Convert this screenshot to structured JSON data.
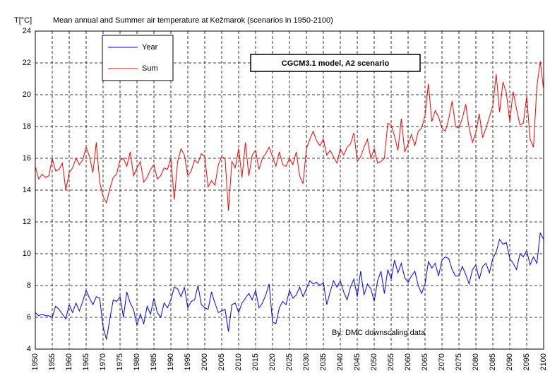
{
  "chart_data": {
    "type": "line",
    "title": "Mean annual and Summer air temperature at Kežmarok (scenarios in 1950-2100)",
    "ylabel": "T[°C]",
    "annotation": "CGCM3.1 model, A2 scenario",
    "source": "By: DMC downscaling data",
    "legend": "upper left",
    "grid": true,
    "xlim": [
      1950,
      2100
    ],
    "ylim": [
      4,
      24
    ],
    "xticks": [
      1950,
      1955,
      1960,
      1965,
      1970,
      1975,
      1980,
      1985,
      1990,
      1995,
      2000,
      2005,
      2010,
      2015,
      2020,
      2025,
      2030,
      2035,
      2040,
      2045,
      2050,
      2055,
      2060,
      2065,
      2070,
      2075,
      2080,
      2085,
      2090,
      2095,
      2100
    ],
    "yticks": [
      4,
      6,
      8,
      10,
      12,
      14,
      16,
      18,
      20,
      22,
      24
    ],
    "x": [
      1950,
      1951,
      1952,
      1953,
      1954,
      1955,
      1956,
      1957,
      1958,
      1959,
      1960,
      1961,
      1962,
      1963,
      1964,
      1965,
      1966,
      1967,
      1968,
      1969,
      1970,
      1971,
      1972,
      1973,
      1974,
      1975,
      1976,
      1977,
      1978,
      1979,
      1980,
      1981,
      1982,
      1983,
      1984,
      1985,
      1986,
      1987,
      1988,
      1989,
      1990,
      1991,
      1992,
      1993,
      1994,
      1995,
      1996,
      1997,
      1998,
      1999,
      2000,
      2001,
      2002,
      2003,
      2004,
      2005,
      2006,
      2007,
      2008,
      2009,
      2010,
      2011,
      2012,
      2013,
      2014,
      2015,
      2016,
      2017,
      2018,
      2019,
      2020,
      2021,
      2022,
      2023,
      2024,
      2025,
      2026,
      2027,
      2028,
      2029,
      2030,
      2031,
      2032,
      2033,
      2034,
      2035,
      2036,
      2037,
      2038,
      2039,
      2040,
      2041,
      2042,
      2043,
      2044,
      2045,
      2046,
      2047,
      2048,
      2049,
      2050,
      2051,
      2052,
      2053,
      2054,
      2055,
      2056,
      2057,
      2058,
      2059,
      2060,
      2061,
      2062,
      2063,
      2064,
      2065,
      2066,
      2067,
      2068,
      2069,
      2070,
      2071,
      2072,
      2073,
      2074,
      2075,
      2076,
      2077,
      2078,
      2079,
      2080,
      2081,
      2082,
      2083,
      2084,
      2085,
      2086,
      2087,
      2088,
      2089,
      2090,
      2091,
      2092,
      2093,
      2094,
      2095,
      2096,
      2097,
      2098,
      2099,
      2100
    ],
    "series": [
      {
        "name": "Year",
        "color": "#0000ff",
        "values": [
          6.3,
          6.1,
          6.2,
          6.1,
          6.1,
          6.0,
          6.7,
          6.5,
          6.2,
          5.9,
          6.8,
          6.3,
          6.9,
          6.4,
          7.0,
          7.7,
          7.2,
          6.8,
          7.3,
          7.2,
          5.4,
          4.6,
          5.9,
          7.1,
          7.0,
          7.3,
          6.0,
          7.6,
          6.9,
          6.5,
          5.5,
          6.2,
          5.6,
          6.7,
          6.2,
          7.2,
          6.3,
          6.0,
          6.9,
          6.6,
          7.1,
          7.9,
          7.8,
          7.3,
          7.9,
          6.6,
          7.0,
          7.1,
          8.0,
          6.8,
          6.6,
          6.5,
          7.6,
          6.9,
          6.3,
          6.4,
          6.5,
          5.1,
          6.8,
          6.9,
          6.3,
          6.9,
          7.2,
          7.5,
          7.1,
          7.7,
          6.6,
          6.9,
          7.4,
          8.1,
          5.7,
          5.6,
          6.6,
          7.0,
          6.8,
          7.7,
          7.2,
          7.4,
          7.9,
          7.3,
          7.8,
          8.3,
          8.1,
          8.2,
          8.0,
          8.2,
          6.8,
          7.6,
          8.3,
          7.9,
          8.3,
          7.6,
          7.1,
          7.9,
          8.4,
          7.3,
          8.9,
          7.4,
          8.1,
          7.8,
          7.0,
          8.3,
          8.9,
          7.5,
          9.0,
          8.4,
          9.6,
          8.8,
          9.4,
          8.5,
          8.2,
          8.6,
          8.9,
          8.0,
          7.5,
          8.1,
          9.5,
          9.1,
          9.4,
          8.6,
          9.6,
          9.8,
          9.7,
          9.0,
          8.6,
          8.6,
          9.2,
          8.7,
          8.1,
          9.0,
          9.3,
          8.4,
          9.2,
          9.4,
          8.8,
          9.7,
          10.1,
          10.9,
          10.6,
          10.7,
          9.7,
          9.4,
          9.0,
          10.0,
          9.8,
          10.2,
          9.3,
          9.8,
          9.4,
          11.3,
          10.9
        ]
      },
      {
        "name": "Sum",
        "color": "#ff0000",
        "values": [
          15.5,
          14.7,
          15.0,
          14.8,
          14.9,
          16.0,
          15.2,
          15.3,
          15.7,
          14.0,
          15.1,
          15.4,
          16.0,
          15.6,
          15.9,
          16.7,
          16.1,
          15.1,
          17.0,
          14.5,
          13.6,
          13.2,
          14.1,
          14.8,
          15.0,
          15.9,
          16.0,
          15.5,
          16.4,
          14.9,
          15.4,
          15.8,
          14.5,
          14.8,
          15.3,
          15.6,
          14.7,
          14.9,
          15.4,
          15.3,
          16.0,
          13.4,
          15.8,
          16.6,
          16.2,
          14.9,
          15.2,
          15.9,
          15.7,
          16.3,
          16.1,
          14.2,
          14.6,
          14.3,
          15.6,
          16.1,
          16.0,
          12.7,
          15.8,
          15.4,
          16.6,
          14.8,
          17.0,
          14.9,
          16.2,
          16.5,
          15.3,
          16.0,
          16.3,
          16.7,
          16.1,
          15.5,
          16.4,
          15.6,
          15.5,
          16.0,
          15.6,
          16.4,
          14.9,
          14.4,
          16.6,
          17.2,
          17.7,
          17.1,
          16.8,
          17.2,
          16.2,
          16.5,
          16.1,
          15.7,
          16.6,
          16.2,
          16.7,
          16.9,
          17.6,
          15.8,
          16.1,
          16.7,
          17.2,
          16.0,
          16.6,
          15.7,
          15.8,
          16.0,
          18.2,
          18.1,
          17.4,
          16.5,
          18.5,
          16.4,
          16.9,
          17.5,
          16.8,
          17.7,
          17.9,
          18.7,
          20.7,
          18.3,
          19.0,
          18.6,
          17.9,
          17.7,
          18.5,
          19.6,
          18.0,
          17.9,
          18.5,
          19.4,
          17.9,
          17.0,
          17.6,
          18.8,
          17.3,
          17.9,
          18.6,
          19.3,
          21.3,
          18.9,
          20.8,
          20.1,
          18.3,
          20.2,
          19.1,
          18.1,
          18.2,
          19.9,
          17.2,
          16.7,
          20.5,
          22.1,
          20.3
        ]
      }
    ]
  }
}
